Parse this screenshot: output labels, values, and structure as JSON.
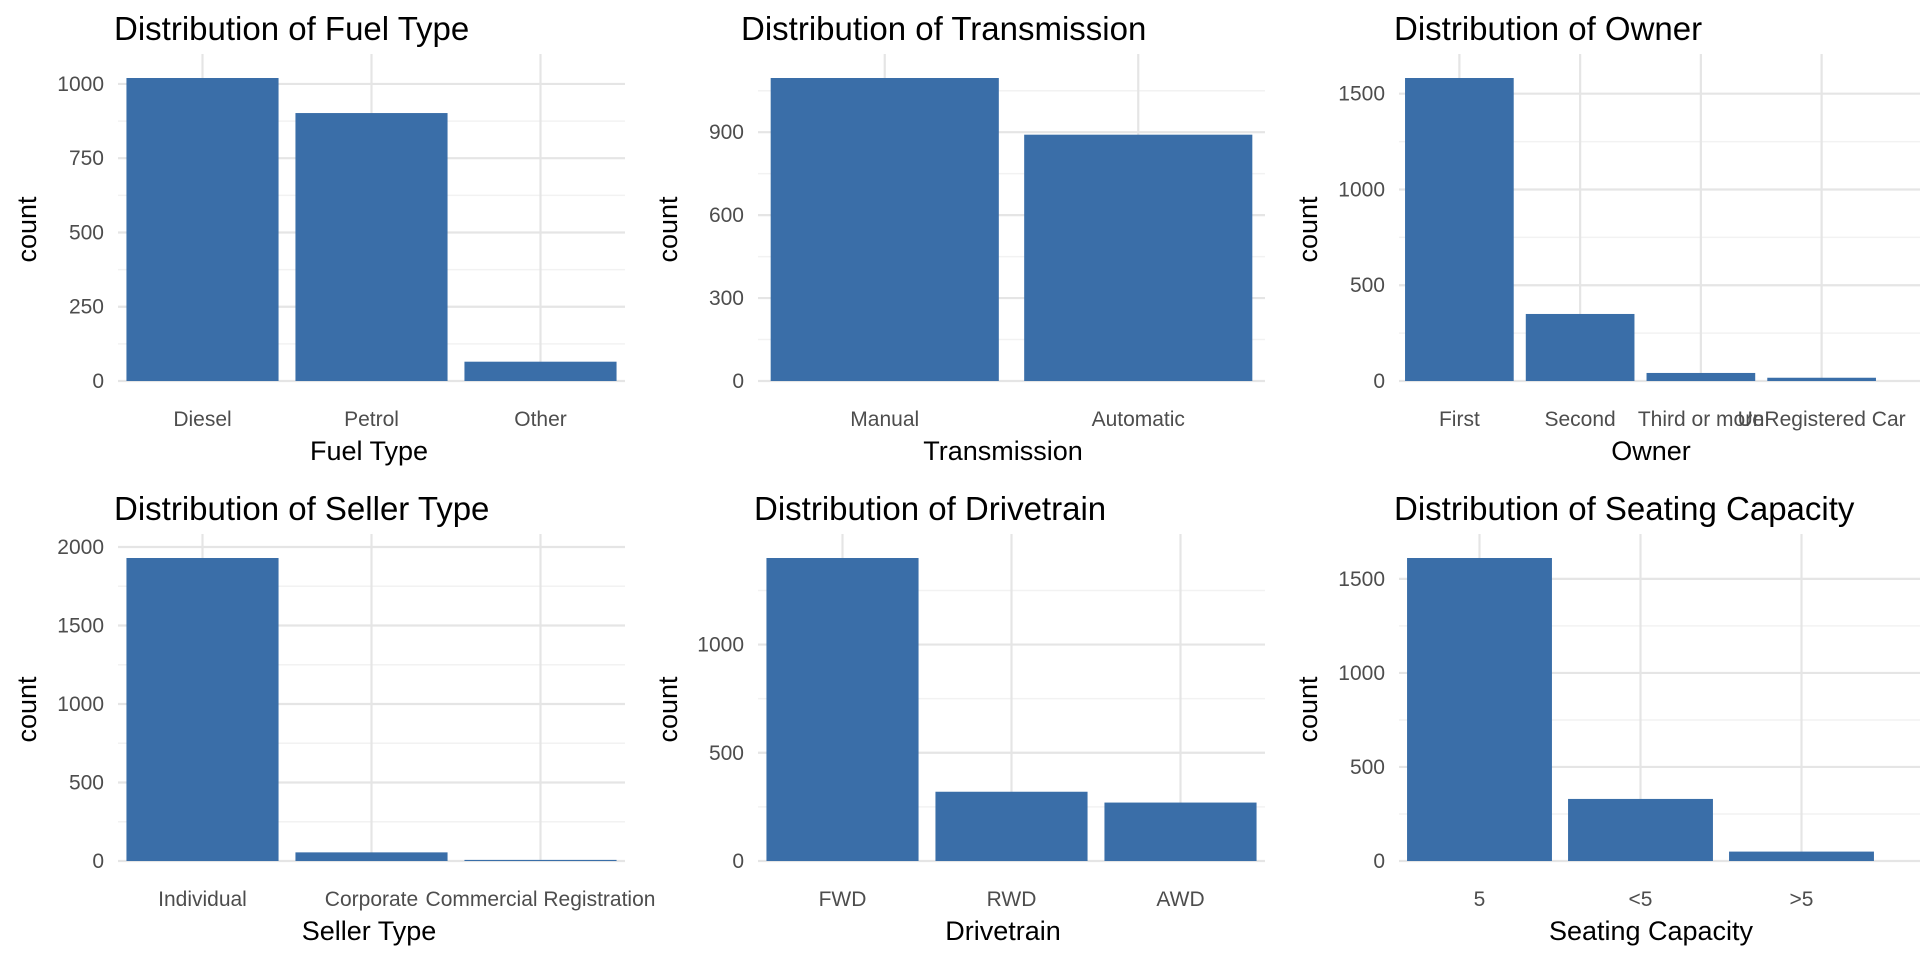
{
  "colors": {
    "bar": "#3A6EA8",
    "grid_major": "#E5E5E5",
    "grid_minor": "#F2F2F2",
    "tick_text": "#4D4D4D"
  },
  "chart_data": [
    {
      "type": "bar",
      "title": "Distribution of Fuel Type",
      "xlabel": "Fuel Type",
      "ylabel": "count",
      "categories": [
        "Diesel",
        "Petrol",
        "Other"
      ],
      "values": [
        1020,
        902,
        65
      ],
      "ylim": [
        0,
        1020
      ],
      "yticks": [
        0,
        250,
        500,
        750,
        1000
      ],
      "yticks_labels": [
        "0",
        "250",
        "500",
        "750",
        "1000"
      ],
      "grid": true
    },
    {
      "type": "bar",
      "title": "Distribution of Transmission",
      "xlabel": "Transmission",
      "ylabel": "count",
      "categories": [
        "Manual",
        "Automatic"
      ],
      "values": [
        1096,
        891
      ],
      "ylim": [
        0,
        1096
      ],
      "yticks": [
        0,
        300,
        600,
        900
      ],
      "yticks_labels": [
        "0",
        "300",
        "600",
        "900"
      ],
      "grid": true
    },
    {
      "type": "bar",
      "title": "Distribution of Owner",
      "xlabel": "Owner",
      "ylabel": "count",
      "categories": [
        "First",
        "Second",
        "Third or more",
        "UnRegistered Car"
      ],
      "values": [
        1582,
        350,
        42,
        17
      ],
      "ylim": [
        0,
        1582
      ],
      "yticks": [
        0,
        500,
        1000,
        1500
      ],
      "yticks_labels": [
        "0",
        "500",
        "1000",
        "1500"
      ],
      "grid": true
    },
    {
      "type": "bar",
      "title": "Distribution of Seller Type",
      "xlabel": "Seller Type",
      "ylabel": "count",
      "categories": [
        "Individual",
        "Corporate",
        "Commercial Registration"
      ],
      "values": [
        1930,
        55,
        7
      ],
      "ylim": [
        0,
        1930
      ],
      "yticks": [
        0,
        500,
        1000,
        1500,
        2000
      ],
      "yticks_labels": [
        "0",
        "500",
        "1000",
        "1500",
        "2000"
      ],
      "grid": true
    },
    {
      "type": "bar",
      "title": "Distribution of Drivetrain",
      "xlabel": "Drivetrain",
      "ylabel": "count",
      "categories": [
        "FWD",
        "RWD",
        "AWD"
      ],
      "values": [
        1400,
        320,
        270
      ],
      "ylim": [
        0,
        1400
      ],
      "yticks": [
        0,
        500,
        1000
      ],
      "yticks_labels": [
        "0",
        "500",
        "1000"
      ],
      "grid": true
    },
    {
      "type": "bar",
      "title": "Distribution of Seating Capacity",
      "xlabel": "Seating Capacity",
      "ylabel": "count",
      "categories": [
        "5",
        "<5",
        ">5"
      ],
      "values": [
        1611,
        330,
        50
      ],
      "ylim": [
        0,
        1611
      ],
      "yticks": [
        0,
        500,
        1000,
        1500
      ],
      "yticks_labels": [
        "0",
        "500",
        "1000",
        "1500"
      ],
      "grid": true
    }
  ]
}
